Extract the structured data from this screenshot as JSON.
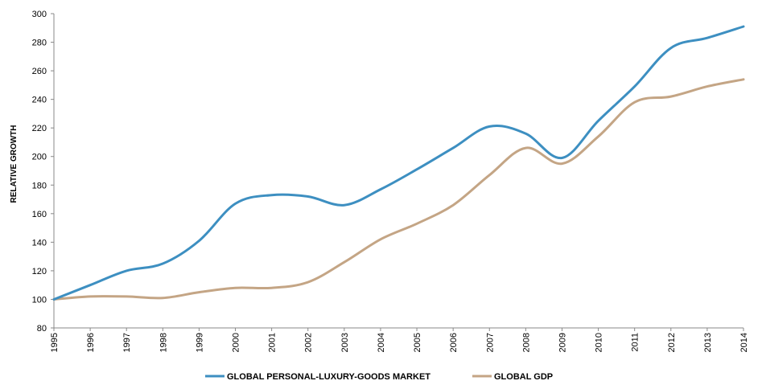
{
  "chart_data": {
    "type": "line",
    "title": "",
    "xlabel": "",
    "ylabel": "RELATIVE GROWTH",
    "x": [
      "1995",
      "1996",
      "1997",
      "1998",
      "1999",
      "2000",
      "2001",
      "2002",
      "2003",
      "2004",
      "2005",
      "2006",
      "2007",
      "2008",
      "2009",
      "2010",
      "2011",
      "2012",
      "2013",
      "2014"
    ],
    "ylim": [
      80,
      300
    ],
    "yticks": [
      "80",
      "100",
      "120",
      "140",
      "160",
      "180",
      "200",
      "220",
      "240",
      "260",
      "280",
      "300"
    ],
    "grid": false,
    "legend_position": "bottom",
    "series": [
      {
        "name": "GLOBAL PERSONAL-LUXURY-GOODS MARKET",
        "color": "#3d8fc1",
        "values": [
          100,
          110,
          120,
          125,
          141,
          167,
          173,
          172,
          166,
          177,
          191,
          206,
          221,
          216,
          199,
          225,
          249,
          276,
          283,
          291
        ]
      },
      {
        "name": "GLOBAL GDP",
        "color": "#c4a585",
        "values": [
          100,
          102,
          102,
          101,
          105,
          108,
          108,
          112,
          126,
          142,
          153,
          166,
          187,
          206,
          195,
          214,
          238,
          242,
          249,
          254
        ]
      }
    ]
  }
}
